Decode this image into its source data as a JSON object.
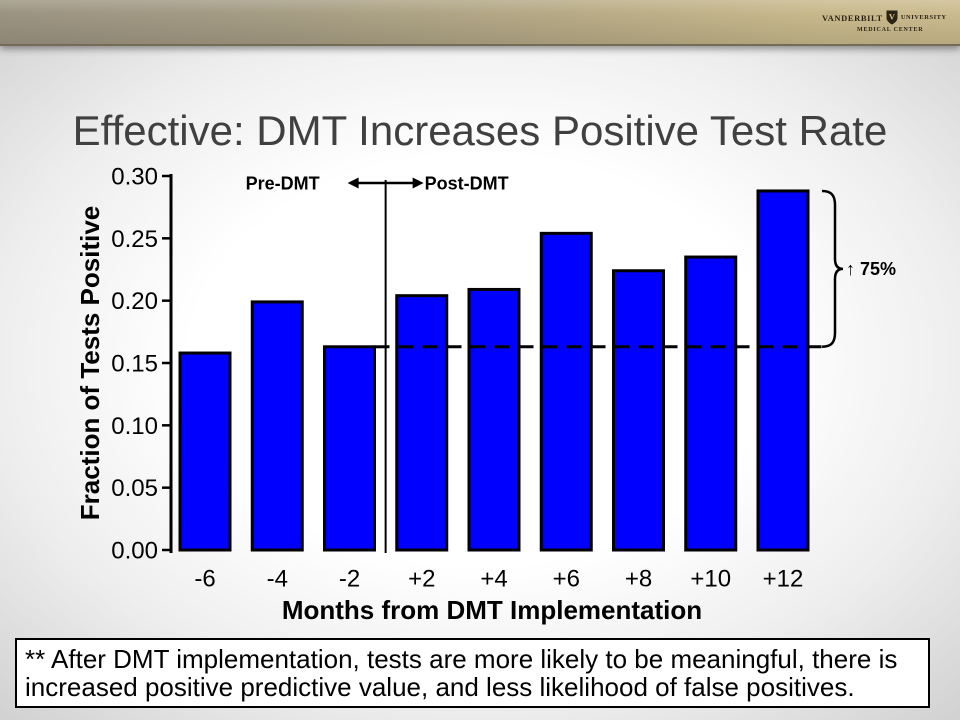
{
  "header": {
    "logo": {
      "name": "VANDERBILT",
      "shield_letter": "V",
      "university": "UNIVERSITY",
      "subtitle": "MEDICAL CENTER"
    }
  },
  "slide": {
    "title": "Effective: DMT Increases Positive Test Rate",
    "title_color": "#404040"
  },
  "chart_data": {
    "type": "bar",
    "categories": [
      "-6",
      "-4",
      "-2",
      "+2",
      "+4",
      "+6",
      "+8",
      "+10",
      "+12"
    ],
    "values": [
      0.158,
      0.199,
      0.163,
      0.204,
      0.209,
      0.254,
      0.224,
      0.235,
      0.288
    ],
    "xlabel": "Months from DMT Implementation",
    "ylabel": "Fraction of Tests Positive",
    "ylim": [
      0,
      0.3
    ],
    "yticks": [
      "0.00",
      "0.05",
      "0.10",
      "0.15",
      "0.20",
      "0.25",
      "0.30"
    ],
    "grid": false,
    "bar_fill": "#0000ff",
    "bar_outline": "#000000",
    "phase_labels": {
      "pre": "Pre-DMT",
      "post": "Post-DMT"
    },
    "reference_line": {
      "value": 0.163
    },
    "increase_annotation": "↑ 75%"
  },
  "footnote": "** After DMT implementation, tests are more likely to be meaningful, there is increased positive predictive value, and less likelihood of false positives."
}
